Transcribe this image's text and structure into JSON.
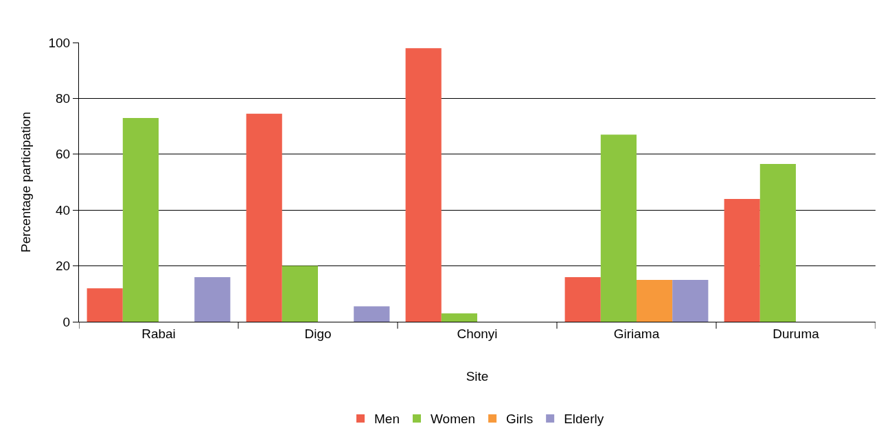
{
  "chart_data": {
    "type": "bar",
    "xlabel": "Site",
    "ylabel": "Percentage participation",
    "categories": [
      "Rabai",
      "Digo",
      "Chonyi",
      "Giriama",
      "Duruma"
    ],
    "series": [
      {
        "name": "Men",
        "color": "#f05f4b",
        "values": [
          12,
          74.5,
          98,
          16,
          44
        ]
      },
      {
        "name": "Women",
        "color": "#8dc63f",
        "values": [
          73,
          20,
          3,
          67,
          56.5
        ]
      },
      {
        "name": "Girls",
        "color": "#f7993b",
        "values": [
          null,
          null,
          null,
          15,
          null
        ]
      },
      {
        "name": "Elderly",
        "color": "#9795c9",
        "values": [
          16,
          5.5,
          null,
          15,
          null
        ]
      }
    ],
    "ylim": [
      0,
      100
    ],
    "yticks": [
      0,
      20,
      40,
      60,
      80,
      100
    ],
    "grid": "y",
    "legend": "bottom"
  }
}
